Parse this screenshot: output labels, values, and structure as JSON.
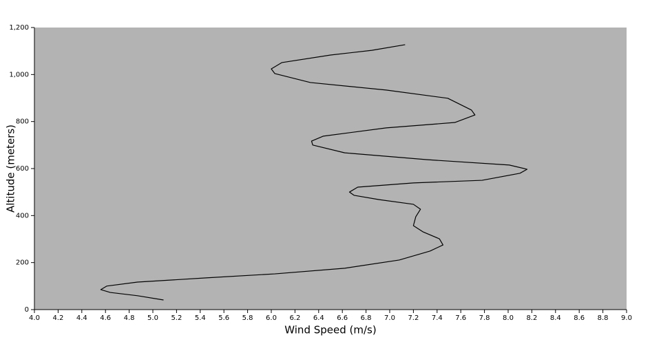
{
  "chart_data": {
    "type": "line",
    "x_label": "Wind Speed (m/s)",
    "y_label": "Altitude (meters)",
    "x": [
      5.09,
      4.87,
      4.64,
      4.56,
      4.61,
      4.87,
      5.45,
      6.03,
      6.62,
      7.08,
      7.34,
      7.45,
      7.42,
      7.28,
      7.2,
      7.22,
      7.26,
      7.2,
      6.91,
      6.7,
      6.66,
      6.73,
      7.2,
      7.78,
      8.1,
      8.16,
      8.01,
      7.31,
      6.62,
      6.35,
      6.34,
      6.44,
      6.97,
      7.55,
      7.72,
      7.69,
      7.49,
      6.97,
      6.33,
      6.03,
      6.0,
      6.09,
      6.5,
      6.85,
      7.13
    ],
    "values": [
      41,
      59,
      73,
      85,
      100,
      117,
      135,
      152,
      176,
      211,
      249,
      275,
      301,
      331,
      357,
      395,
      427,
      448,
      468,
      486,
      500,
      521,
      539,
      550,
      580,
      597,
      615,
      638,
      667,
      700,
      717,
      738,
      773,
      796,
      828,
      849,
      899,
      934,
      966,
      1004,
      1024,
      1051,
      1083,
      1103,
      1127
    ],
    "color": "#000000",
    "background": "#b3b3b3",
    "xlim": [
      4,
      9
    ],
    "xticks": [
      {
        "value": 4,
        "label": "4.0"
      },
      4.2,
      4.4,
      4.6,
      4.8,
      {
        "value": 5,
        "label": "5.0"
      },
      5.2,
      5.4,
      5.6,
      5.8,
      {
        "value": 6,
        "label": "6.0"
      },
      6.2,
      6.4,
      6.6,
      6.8,
      {
        "value": 7,
        "label": "7.0"
      },
      7.2,
      7.4,
      7.6,
      7.8,
      {
        "value": 8,
        "label": "8.0"
      },
      8.2,
      8.4,
      8.6,
      8.8,
      {
        "value": 9,
        "label": "9.0"
      }
    ],
    "ylim": [
      0,
      1200
    ],
    "yticks": [
      0,
      200,
      400,
      600,
      800,
      {
        "value": 1000,
        "label": "1,000"
      },
      {
        "value": 1200,
        "label": "1,200"
      }
    ]
  }
}
